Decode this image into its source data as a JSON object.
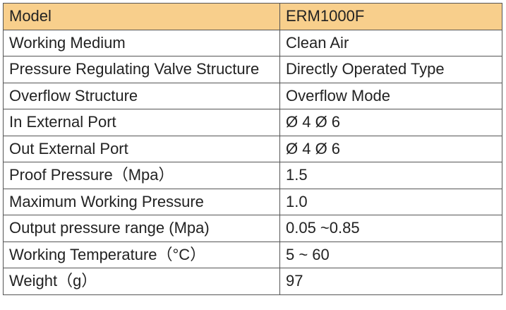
{
  "table": {
    "header": [
      "Model",
      "ERM1000F"
    ],
    "rows": [
      [
        "Working Medium",
        "Clean Air"
      ],
      [
        "Pressure Regulating Valve Structure",
        "Directly Operated Type"
      ],
      [
        "Overflow Structure",
        "Overflow Mode"
      ],
      [
        "In External Port",
        "Ø 4  Ø 6"
      ],
      [
        "Out External Port",
        "Ø 4  Ø 6"
      ],
      [
        "Proof Pressure（Mpa）",
        "1.5"
      ],
      [
        "Maximum Working Pressure",
        "1.0"
      ],
      [
        "Output pressure range (Mpa)",
        "0.05 ~0.85"
      ],
      [
        "Working Temperature（°C）",
        "5 ~ 60"
      ],
      [
        "Weight（g）",
        "97"
      ]
    ]
  }
}
